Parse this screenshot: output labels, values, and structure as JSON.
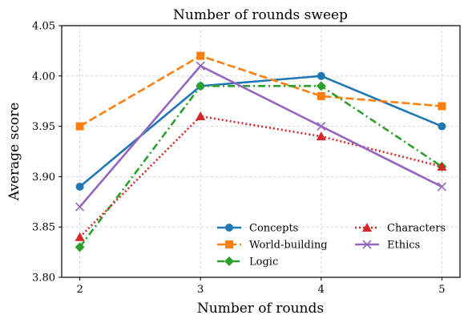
{
  "chart_data": {
    "type": "line",
    "title": "Number of rounds sweep",
    "xlabel": "Number of rounds",
    "ylabel": "Average score",
    "x": [
      2,
      3,
      4,
      5
    ],
    "xlim": [
      1.85,
      5.15
    ],
    "ylim": [
      3.8,
      4.05
    ],
    "xticks": [
      "2",
      "3",
      "4",
      "5"
    ],
    "yticks": [
      "3.80",
      "3.85",
      "3.90",
      "3.95",
      "4.00",
      "4.05"
    ],
    "grid": true,
    "legend_placement": "lower-right",
    "legend_columns": 2,
    "series": [
      {
        "name": "Concepts",
        "values": [
          3.89,
          3.99,
          4.0,
          3.95
        ],
        "color": "#1f77b4",
        "dash": "solid",
        "marker": "circle"
      },
      {
        "name": "World-building",
        "values": [
          3.95,
          4.02,
          3.98,
          3.97
        ],
        "color": "#ff7f0e",
        "dash": "dashed",
        "marker": "square"
      },
      {
        "name": "Logic",
        "values": [
          3.83,
          3.99,
          3.99,
          3.91
        ],
        "color": "#2ca02c",
        "dash": "dashdot",
        "marker": "diamond"
      },
      {
        "name": "Characters",
        "values": [
          3.84,
          3.96,
          3.94,
          3.91
        ],
        "color": "#d62728",
        "dash": "dotted",
        "marker": "triangle"
      },
      {
        "name": "Ethics",
        "values": [
          3.87,
          4.01,
          3.95,
          3.89
        ],
        "color": "#9467bd",
        "dash": "solid",
        "marker": "x"
      }
    ]
  }
}
